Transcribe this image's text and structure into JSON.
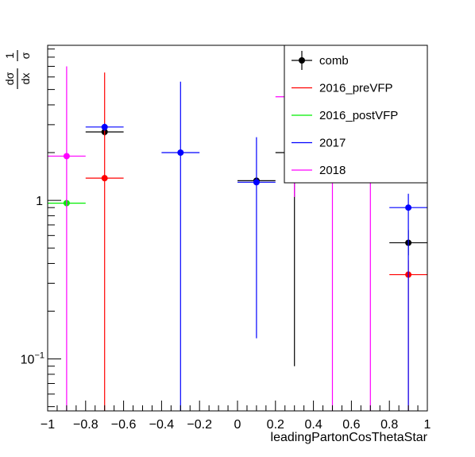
{
  "chart_data": {
    "type": "scatter",
    "title": "",
    "xlabel": "leadingPartonCosThetaStar",
    "ylabel": {
      "num": "1",
      "den": "σ",
      "frac_num": "dσ",
      "frac_den": "dx"
    },
    "xlim": [
      -1,
      1
    ],
    "ylim": [
      0.047,
      9.5
    ],
    "y_scale": "log",
    "grid": false,
    "legend_position": "top-right",
    "x_ticks": [
      -1,
      -0.8,
      -0.6,
      -0.4,
      -0.2,
      0,
      0.2,
      0.4,
      0.6,
      0.8,
      1
    ],
    "x_tick_labels": [
      "−1",
      "−0.8",
      "−0.6",
      "−0.4",
      "−0.2",
      "0",
      "0.2",
      "0.4",
      "0.6",
      "0.8",
      "1"
    ],
    "y_ticks": [
      {
        "value": 1,
        "base": "1",
        "exp": ""
      },
      {
        "value": 0.1,
        "base": "10",
        "exp": "−1"
      }
    ],
    "series": [
      {
        "name": "comb",
        "color": "#000000",
        "points": [
          {
            "x": -0.7,
            "y": 2.7,
            "xerr": 0.1,
            "ylo": 2.55,
            "yhi": 2.85
          },
          {
            "x": 0.1,
            "y": 1.33,
            "xerr": 0.1,
            "ylo": 1.27,
            "yhi": 1.39
          },
          {
            "x": 0.3,
            "y": 2.0,
            "xerr": 0.1,
            "ylo": 0.09,
            "yhi": 2.0
          },
          {
            "x": 0.9,
            "y": 0.54,
            "xerr": 0.1,
            "ylo": 0.45,
            "yhi": 0.65
          }
        ]
      },
      {
        "name": "2016_preVFP",
        "color": "#ff0000",
        "points": [
          {
            "x": -0.7,
            "y": 1.38,
            "xerr": 0.1,
            "ylo": 0.047,
            "yhi": 6.4
          },
          {
            "x": 0.9,
            "y": 0.34,
            "xerr": 0.1,
            "ylo": 0.047,
            "yhi": 0.42
          }
        ]
      },
      {
        "name": "2016_postVFP",
        "color": "#00ee00",
        "points": [
          {
            "x": -0.9,
            "y": 0.96,
            "xerr": 0.1,
            "ylo": 0.9,
            "yhi": 1.02
          }
        ]
      },
      {
        "name": "2017",
        "color": "#0000ff",
        "points": [
          {
            "x": -0.7,
            "y": 2.9,
            "xerr": 0.1,
            "ylo": 2.75,
            "yhi": 3.05
          },
          {
            "x": -0.3,
            "y": 2.0,
            "xerr": 0.1,
            "ylo": 0.047,
            "yhi": 5.6
          },
          {
            "x": 0.1,
            "y": 1.3,
            "xerr": 0.1,
            "ylo": 0.135,
            "yhi": 2.5
          },
          {
            "x": 0.9,
            "y": 0.9,
            "xerr": 0.1,
            "ylo": 0.047,
            "yhi": 1.1
          }
        ]
      },
      {
        "name": "2018",
        "color": "#ff00ff",
        "points": [
          {
            "x": -0.9,
            "y": 1.9,
            "xerr": 0.1,
            "ylo": 0.047,
            "yhi": 7.0
          },
          {
            "x": 0.3,
            "y": 4.5,
            "xerr": 0.1,
            "ylo": 1.05,
            "yhi": 4.6
          },
          {
            "x": 0.5,
            "y": 3.0,
            "xerr": 0.0,
            "ylo": 0.047,
            "yhi": 3.0
          },
          {
            "x": 0.7,
            "y": 3.0,
            "xerr": 0.0,
            "ylo": 0.047,
            "yhi": 3.0
          }
        ]
      }
    ]
  }
}
